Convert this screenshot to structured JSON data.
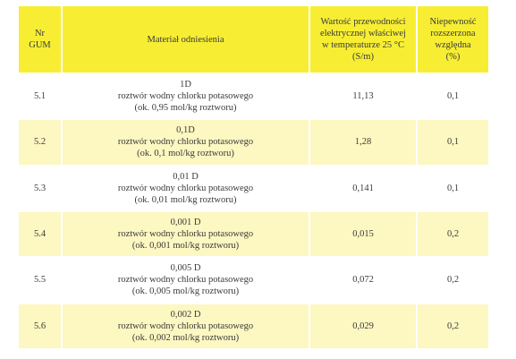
{
  "table": {
    "headers": {
      "nr": [
        "Nr",
        "GUM"
      ],
      "material": "Materiał odniesienia",
      "conductivity": [
        "Wartość przewodności",
        "elektrycznej właściwej",
        "w  temperaturze 25 °C",
        "(S/m)"
      ],
      "uncertainty": [
        "Niepewność",
        "rozszerzona",
        "względna",
        "(%)"
      ]
    },
    "rows": [
      {
        "nr": "5.1",
        "material": [
          "1D",
          "roztwór wodny chlorku potasowego",
          "(ok. 0,95 mol/kg roztworu)"
        ],
        "conductivity": "11,13",
        "uncertainty": "0,1"
      },
      {
        "nr": "5.2",
        "material": [
          "0,1D",
          "roztwór wodny chlorku potasowego",
          "(ok. 0,1 mol/kg roztworu)"
        ],
        "conductivity": "1,28",
        "uncertainty": "0,1"
      },
      {
        "nr": "5.3",
        "material": [
          "0,01 D",
          "roztwór wodny chlorku potasowego",
          "(ok. 0,01 mol/kg roztworu)"
        ],
        "conductivity": "0,141",
        "uncertainty": "0,1"
      },
      {
        "nr": "5.4",
        "material": [
          "0,001 D",
          "roztwór wodny chlorku potasowego",
          "(ok. 0,001 mol/kg roztworu)"
        ],
        "conductivity": "0,015",
        "uncertainty": "0,2"
      },
      {
        "nr": "5.5",
        "material": [
          "0,005 D",
          "roztwór wodny chlorku potasowego",
          "(ok. 0,005 mol/kg roztworu)"
        ],
        "conductivity": "0,072",
        "uncertainty": "0,2"
      },
      {
        "nr": "5.6",
        "material": [
          "0,002 D",
          "roztwór wodny chlorku potasowego",
          "(ok. 0,002 mol/kg roztworu)"
        ],
        "conductivity": "0,029",
        "uncertainty": "0,2"
      }
    ]
  },
  "colors": {
    "header_bg": "#f7ee33",
    "row_alt_bg": "#fdf7c1",
    "row_bg": "#ffffff",
    "text": "#3a3a3a"
  }
}
